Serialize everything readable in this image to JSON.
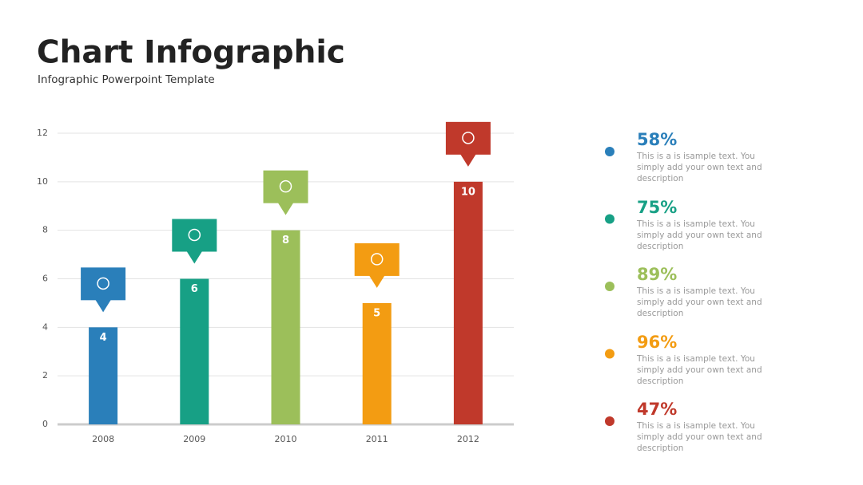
{
  "chart_data": {
    "type": "bar",
    "title": "Chart Infographic",
    "subtitle": "Infographic Powerpoint Template",
    "categories": [
      "2008",
      "2009",
      "2010",
      "2011",
      "2012"
    ],
    "values": [
      4,
      6,
      8,
      5,
      10
    ],
    "colors": [
      "#2a7fba",
      "#17a085",
      "#9cbf5a",
      "#f39c12",
      "#c0392b"
    ],
    "ylim": [
      0,
      12
    ],
    "yticks": [
      0,
      2,
      4,
      6,
      8,
      10,
      12
    ],
    "grid": true
  },
  "side_panel": {
    "items": [
      {
        "label": "58%",
        "text": "This is a is isample text. You simply add your own text and description"
      },
      {
        "label": "75%",
        "text": "This is a is isample text. You simply add your own text and description"
      },
      {
        "label": "89%",
        "text": "This is a is isample text. You simply add your own text and description"
      },
      {
        "label": "96%",
        "text": "This is a is isample text. You simply add your own text and description"
      },
      {
        "label": "47%",
        "text": "This is a is isample text. You simply add your own text and description"
      }
    ]
  }
}
